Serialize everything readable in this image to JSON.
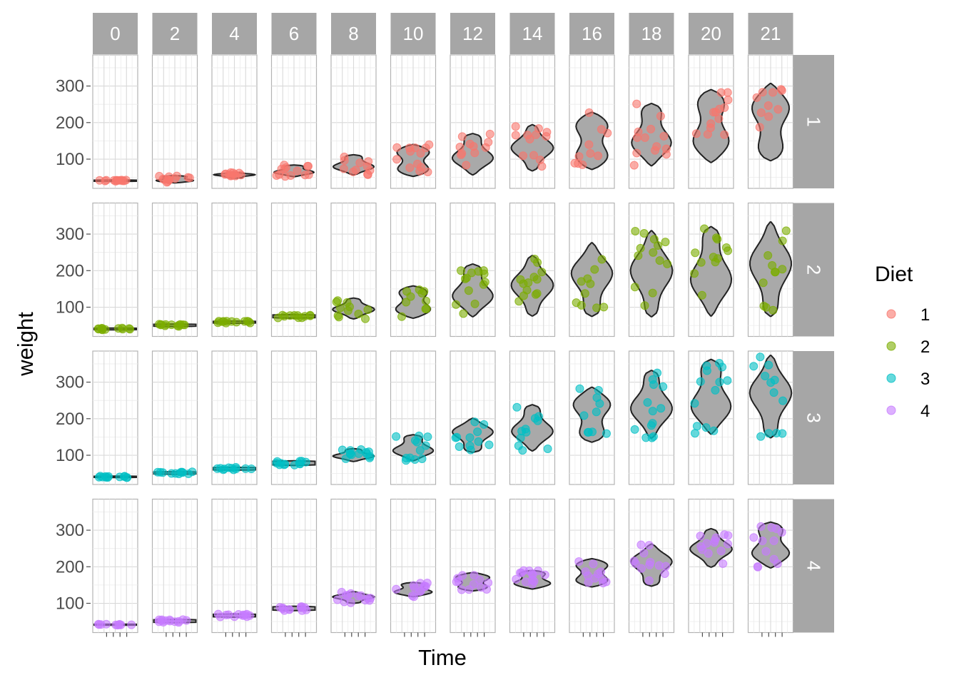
{
  "chart_data": {
    "type": "violin",
    "facet_columns": [
      "0",
      "2",
      "4",
      "6",
      "8",
      "10",
      "12",
      "14",
      "16",
      "18",
      "20",
      "21"
    ],
    "facet_rows": [
      "1",
      "2",
      "3",
      "4"
    ],
    "xlabel": "Time",
    "ylabel": "weight",
    "y_ticks": [
      100,
      200,
      300
    ],
    "ylim": [
      20,
      385
    ],
    "legend": {
      "title": "Diet",
      "position": "right",
      "items": [
        {
          "label": "1",
          "color": "#f8766d"
        },
        {
          "label": "2",
          "color": "#7cae00"
        },
        {
          "label": "3",
          "color": "#00bfc4"
        },
        {
          "label": "4",
          "color": "#c77cff"
        }
      ]
    },
    "series": [
      {
        "name": "1",
        "color": "#f8766d",
        "min": [
          39,
          35,
          48,
          52,
          57,
          53,
          57,
          68,
          72,
          82,
          91,
          96
        ],
        "max": [
          43,
          55,
          64,
          84,
          112,
          140,
          170,
          194,
          228,
          252,
          290,
          307
        ]
      },
      {
        "name": "2",
        "color": "#7cae00",
        "min": [
          38,
          47,
          56,
          70,
          68,
          70,
          74,
          76,
          75,
          74,
          76,
          75
        ],
        "max": [
          43,
          54,
          62,
          80,
          125,
          158,
          218,
          241,
          276,
          309,
          320,
          333
        ]
      },
      {
        "name": "3",
        "color": "#00bfc4",
        "min": [
          39,
          48,
          59,
          72,
          83,
          85,
          108,
          112,
          136,
          147,
          158,
          148
        ],
        "max": [
          43,
          55,
          67,
          85,
          118,
          156,
          201,
          238,
          286,
          332,
          362,
          373
        ]
      },
      {
        "name": "4",
        "color": "#c77cff",
        "min": [
          40,
          47,
          62,
          80,
          100,
          118,
          134,
          139,
          145,
          147,
          199,
          197
        ],
        "max": [
          43,
          56,
          71,
          92,
          132,
          157,
          184,
          190,
          222,
          262,
          304,
          322
        ]
      }
    ]
  }
}
